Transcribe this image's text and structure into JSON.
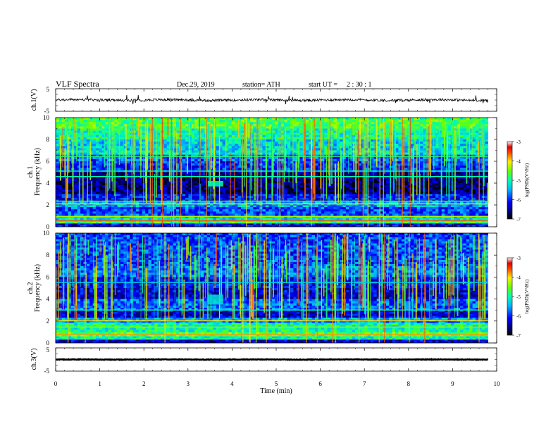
{
  "header": {
    "title": "VLF  Spectra",
    "date": "Dec.29, 2019",
    "station": "station= ATH",
    "start_label": "start  UT  =",
    "start_time": "2  : 30 : 1"
  },
  "chart_data": [
    {
      "type": "line",
      "panel": "ch1-waveform",
      "ylabel": "ch.1(V)",
      "ylim": [
        -5,
        5
      ],
      "yticks": [
        "5",
        "-5"
      ],
      "xlim": [
        0,
        10
      ],
      "description_values": {
        "baseline_v": 0,
        "noise_amplitude_v": 0.6,
        "max_spike_v": 1.6,
        "min_spike_v": -1.6,
        "data_end_min": 9.8
      }
    },
    {
      "type": "heatmap",
      "panel": "ch1-spectrogram",
      "ylabel": "ch.1\nFrequency  (kHz)",
      "ylim": [
        0,
        10
      ],
      "yticks": [
        "0",
        "2",
        "4",
        "6",
        "8",
        "10"
      ],
      "xlim": [
        0,
        10
      ],
      "data_end_min": 9.8,
      "colorbar": {
        "label": "log(PSD)(V²/Hz)",
        "range": [
          -7,
          -3
        ],
        "ticks": [
          "-3",
          "-4",
          "-5",
          "-6",
          "-7"
        ]
      },
      "bands": [
        {
          "f": [
            9.0,
            10.0
          ],
          "level": -4.7
        },
        {
          "f": [
            8.0,
            9.0
          ],
          "level": -5.0
        },
        {
          "f": [
            7.0,
            8.0
          ],
          "level": -5.3
        },
        {
          "f": [
            6.6,
            7.0
          ],
          "level": -5.2
        },
        {
          "f": [
            6.0,
            6.6
          ],
          "level": -5.8
        },
        {
          "f": [
            5.0,
            6.0
          ],
          "level": -6.0
        },
        {
          "f": [
            3.0,
            5.0
          ],
          "level": -6.6
        },
        {
          "f": [
            2.3,
            3.0
          ],
          "level": -6.1
        },
        {
          "f": [
            1.8,
            2.3
          ],
          "level": -5.5
        },
        {
          "f": [
            1.0,
            1.8
          ],
          "level": -5.9
        },
        {
          "f": [
            0.6,
            1.0
          ],
          "level": -5.2
        },
        {
          "f": [
            0.3,
            0.6
          ],
          "level": -4.8
        },
        {
          "f": [
            0.0,
            0.3
          ],
          "level": -6.2
        }
      ],
      "lines": [
        {
          "f": 2.1,
          "level": -4.0
        },
        {
          "f": 2.35,
          "level": -4.6
        },
        {
          "f": 0.55,
          "level": -3.6
        },
        {
          "f": 0.95,
          "level": -4.3
        },
        {
          "f": 4.6,
          "level": -5.0
        },
        {
          "f": 5.1,
          "level": -5.0
        },
        {
          "f": 6.45,
          "level": -4.8
        }
      ],
      "patch": {
        "t": [
          3.45,
          3.8
        ],
        "f": [
          3.7,
          4.2
        ],
        "level": -5.0
      }
    },
    {
      "type": "heatmap",
      "panel": "ch2-spectrogram",
      "ylabel": "ch.2\nFrequency  (kHz)",
      "ylim": [
        0,
        10
      ],
      "yticks": [
        "0",
        "2",
        "4",
        "6",
        "8",
        "10"
      ],
      "xlim": [
        0,
        10
      ],
      "data_end_min": 9.8,
      "colorbar": {
        "label": "log(PSD)(V²/Hz)",
        "range": [
          -7,
          -3
        ],
        "ticks": [
          "-3",
          "-4",
          "-5",
          "-6",
          "-7"
        ]
      },
      "bands": [
        {
          "f": [
            7.0,
            10.0
          ],
          "level": -5.9
        },
        {
          "f": [
            6.0,
            7.0
          ],
          "level": -5.7
        },
        {
          "f": [
            5.0,
            6.0
          ],
          "level": -6.1
        },
        {
          "f": [
            4.0,
            5.0
          ],
          "level": -6.3
        },
        {
          "f": [
            3.0,
            4.0
          ],
          "level": -5.8
        },
        {
          "f": [
            2.3,
            3.0
          ],
          "level": -6.3
        },
        {
          "f": [
            1.8,
            2.3
          ],
          "level": -5.5
        },
        {
          "f": [
            1.0,
            1.8
          ],
          "level": -5.0
        },
        {
          "f": [
            0.6,
            1.0
          ],
          "level": -4.7
        },
        {
          "f": [
            0.3,
            0.6
          ],
          "level": -5.0
        },
        {
          "f": [
            0.0,
            0.3
          ],
          "level": -6.3
        }
      ],
      "lines": [
        {
          "f": 2.05,
          "level": -4.0
        },
        {
          "f": 1.45,
          "level": -4.4
        },
        {
          "f": 0.75,
          "level": -3.8
        },
        {
          "f": 3.0,
          "level": -5.0
        },
        {
          "f": 5.5,
          "level": -5.3
        }
      ],
      "patch": {
        "t": [
          3.45,
          3.8
        ],
        "f": [
          3.5,
          4.4
        ],
        "level": -5.2
      }
    },
    {
      "type": "line",
      "panel": "ch3-waveform",
      "ylabel": "ch.3(V)",
      "ylim": [
        -5,
        5
      ],
      "yticks": [
        "5",
        "-5"
      ],
      "xlim": [
        0,
        10
      ],
      "xlabel": "Time  (min)",
      "xticks": [
        "0",
        "1",
        "2",
        "3",
        "4",
        "5",
        "6",
        "7",
        "8",
        "9",
        "10"
      ],
      "description_values": {
        "baseline_v": 0,
        "noise_amplitude_v": 0.3,
        "data_end_min": 9.8
      }
    }
  ]
}
